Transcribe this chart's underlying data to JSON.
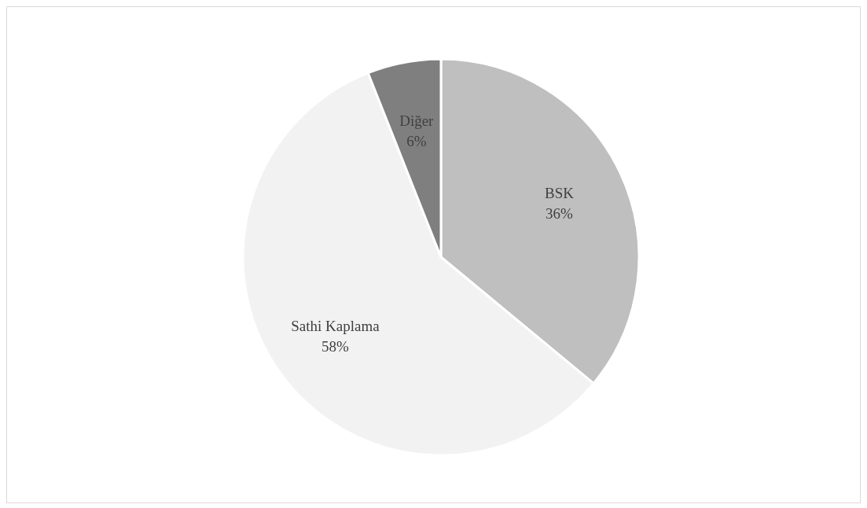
{
  "chart_data": {
    "type": "pie",
    "categories": [
      "BSK",
      "Sathi Kaplama",
      "Diğer"
    ],
    "values": [
      36,
      58,
      6
    ],
    "colors": [
      "#bfbfbf",
      "#f2f2f2",
      "#7f7f7f"
    ],
    "value_labels": [
      "36%",
      "58%",
      "6%"
    ],
    "legend": false
  }
}
